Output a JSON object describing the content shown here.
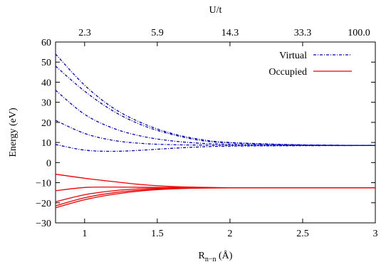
{
  "chart_data": {
    "type": "line",
    "xlabel_main": "R",
    "xlabel_sub": "n−n",
    "xlabel_unit": "(Å)",
    "ylabel": "Energy (eV)",
    "top_axis_label": "U/t",
    "xlim": [
      0.8,
      3.0
    ],
    "ylim": [
      -30,
      60
    ],
    "x_ticks": [
      "1",
      "1.5",
      "2",
      "2.5",
      "3"
    ],
    "x_tick_values": [
      1.0,
      1.5,
      2.0,
      2.5,
      3.0
    ],
    "y_ticks": [
      "60",
      "50",
      "40",
      "30",
      "20",
      "10",
      "0",
      "−10",
      "−20",
      "−30"
    ],
    "y_tick_values": [
      60,
      50,
      40,
      30,
      20,
      10,
      0,
      -10,
      -20,
      -30
    ],
    "top_ticks": [
      "2.3",
      "5.9",
      "14.3",
      "33.3",
      "100.0"
    ],
    "grid": false,
    "legend_position": "top-right",
    "colors": {
      "virtual": "#0000cc",
      "occupied": "#ee0000"
    },
    "series": [
      {
        "name": "Virtual",
        "group": "virtual",
        "x": [
          0.8,
          1.0,
          1.2,
          1.4,
          1.6,
          1.8,
          2.0,
          2.5,
          3.0
        ],
        "y": [
          54,
          38.5,
          27,
          19.5,
          14.5,
          11.5,
          10,
          8.8,
          8.5
        ]
      },
      {
        "name": "Virtual",
        "group": "virtual",
        "x": [
          0.8,
          1.0,
          1.2,
          1.4,
          1.6,
          1.8,
          2.0,
          2.5,
          3.0
        ],
        "y": [
          48,
          35.5,
          25.5,
          18.5,
          14,
          11,
          9.8,
          8.8,
          8.5
        ]
      },
      {
        "name": "Virtual",
        "group": "virtual",
        "x": [
          0.8,
          1.0,
          1.2,
          1.4,
          1.6,
          1.8,
          2.0,
          2.5,
          3.0
        ],
        "y": [
          36,
          24,
          17,
          13,
          10.8,
          9.6,
          9.1,
          8.7,
          8.5
        ]
      },
      {
        "name": "Virtual",
        "group": "virtual",
        "x": [
          0.8,
          1.0,
          1.2,
          1.4,
          1.6,
          1.8,
          2.0,
          2.5,
          3.0
        ],
        "y": [
          21,
          14.5,
          11,
          9.5,
          8.9,
          8.7,
          8.6,
          8.5,
          8.5
        ]
      },
      {
        "name": "Virtual",
        "group": "virtual",
        "x": [
          0.8,
          1.0,
          1.2,
          1.4,
          1.6,
          1.8,
          2.0,
          2.5,
          3.0
        ],
        "y": [
          9,
          6.2,
          5.6,
          6.2,
          7.1,
          7.8,
          8.2,
          8.4,
          8.5
        ]
      },
      {
        "name": "Occupied",
        "group": "occupied",
        "x": [
          0.8,
          1.0,
          1.2,
          1.4,
          1.6,
          1.8,
          2.0,
          2.5,
          3.0
        ],
        "y": [
          -5.8,
          -7.8,
          -9.5,
          -11,
          -11.9,
          -12.3,
          -12.5,
          -12.5,
          -12.5
        ]
      },
      {
        "name": "Occupied",
        "group": "occupied",
        "x": [
          0.8,
          1.0,
          1.2,
          1.4,
          1.6,
          1.8,
          2.0,
          2.5,
          3.0
        ],
        "y": [
          -14,
          -12.4,
          -12.2,
          -12.3,
          -12.4,
          -12.5,
          -12.5,
          -12.5,
          -12.5
        ]
      },
      {
        "name": "Occupied",
        "group": "occupied",
        "x": [
          0.8,
          1.0,
          1.2,
          1.4,
          1.6,
          1.8,
          2.0,
          2.5,
          3.0
        ],
        "y": [
          -19.5,
          -16,
          -14,
          -13,
          -12.7,
          -12.6,
          -12.5,
          -12.5,
          -12.5
        ]
      },
      {
        "name": "Occupied",
        "group": "occupied",
        "x": [
          0.8,
          1.0,
          1.2,
          1.4,
          1.6,
          1.8,
          2.0,
          2.5,
          3.0
        ],
        "y": [
          -21.5,
          -17.5,
          -15,
          -13.6,
          -12.9,
          -12.6,
          -12.5,
          -12.5,
          -12.5
        ]
      },
      {
        "name": "Occupied",
        "group": "occupied",
        "x": [
          0.8,
          1.0,
          1.2,
          1.4,
          1.6,
          1.8,
          2.0,
          2.5,
          3.0
        ],
        "y": [
          -22.5,
          -18.5,
          -15.8,
          -14,
          -13.1,
          -12.7,
          -12.6,
          -12.5,
          -12.5
        ]
      }
    ],
    "legend": [
      {
        "label": "Virtual",
        "group": "virtual"
      },
      {
        "label": "Occupied",
        "group": "occupied"
      }
    ]
  }
}
